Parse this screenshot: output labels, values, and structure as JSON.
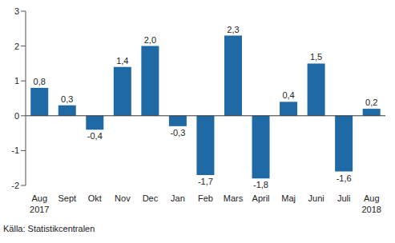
{
  "chart_data": {
    "type": "bar",
    "categories": [
      "Aug\n2017",
      "Sept",
      "Okt",
      "Nov",
      "Dec",
      "Jan",
      "Feb",
      "Mars",
      "April",
      "Maj",
      "Juni",
      "Juli",
      "Aug\n2018"
    ],
    "values": [
      0.8,
      0.3,
      -0.4,
      1.4,
      2.0,
      -0.3,
      -1.7,
      2.3,
      -1.8,
      0.4,
      1.5,
      -1.6,
      0.2
    ],
    "value_labels": [
      "0,8",
      "0,3",
      "-0,4",
      "1,4",
      "2,0",
      "-0,3",
      "-1,7",
      "2,3",
      "-1,8",
      "0,4",
      "1,5",
      "-1,6",
      "0,2"
    ],
    "color": "#1f6aa5",
    "ylim": [
      -2,
      3
    ],
    "yticks": [
      -2,
      -1,
      0,
      1,
      2,
      3
    ],
    "grid": false,
    "data_labels": true,
    "source": "Källa: Statistikcentralen"
  }
}
